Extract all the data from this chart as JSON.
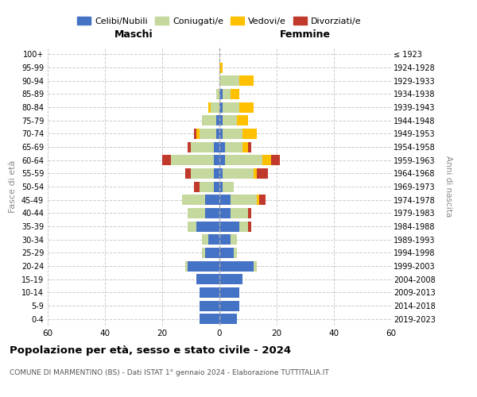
{
  "age_groups": [
    "0-4",
    "5-9",
    "10-14",
    "15-19",
    "20-24",
    "25-29",
    "30-34",
    "35-39",
    "40-44",
    "45-49",
    "50-54",
    "55-59",
    "60-64",
    "65-69",
    "70-74",
    "75-79",
    "80-84",
    "85-89",
    "90-94",
    "95-99",
    "100+"
  ],
  "birth_years": [
    "2019-2023",
    "2014-2018",
    "2009-2013",
    "2004-2008",
    "1999-2003",
    "1994-1998",
    "1989-1993",
    "1984-1988",
    "1979-1983",
    "1974-1978",
    "1969-1973",
    "1964-1968",
    "1959-1963",
    "1954-1958",
    "1949-1953",
    "1944-1948",
    "1939-1943",
    "1934-1938",
    "1929-1933",
    "1924-1928",
    "≤ 1923"
  ],
  "colors": {
    "celibi": "#4472c4",
    "coniugati": "#c5d89d",
    "vedovi": "#ffc000",
    "divorziati": "#c0392b"
  },
  "maschi": {
    "celibi": [
      7,
      7,
      7,
      8,
      11,
      5,
      4,
      8,
      5,
      5,
      2,
      2,
      2,
      2,
      1,
      1,
      0,
      0,
      0,
      0,
      0
    ],
    "coniugati": [
      0,
      0,
      0,
      0,
      1,
      1,
      2,
      3,
      6,
      8,
      5,
      8,
      15,
      8,
      6,
      5,
      3,
      1,
      0,
      0,
      0
    ],
    "vedovi": [
      0,
      0,
      0,
      0,
      0,
      0,
      0,
      0,
      0,
      0,
      0,
      0,
      0,
      0,
      1,
      0,
      1,
      0,
      0,
      0,
      0
    ],
    "divorziati": [
      0,
      0,
      0,
      0,
      0,
      0,
      0,
      0,
      0,
      0,
      2,
      2,
      3,
      1,
      1,
      0,
      0,
      0,
      0,
      0,
      0
    ]
  },
  "femmine": {
    "celibi": [
      6,
      7,
      7,
      8,
      12,
      5,
      4,
      7,
      4,
      4,
      1,
      1,
      2,
      2,
      1,
      1,
      1,
      1,
      0,
      0,
      0
    ],
    "coniugati": [
      0,
      0,
      0,
      0,
      1,
      1,
      2,
      3,
      6,
      9,
      4,
      11,
      13,
      6,
      7,
      5,
      6,
      3,
      7,
      0,
      0
    ],
    "vedovi": [
      0,
      0,
      0,
      0,
      0,
      0,
      0,
      0,
      0,
      1,
      0,
      1,
      3,
      2,
      5,
      4,
      5,
      3,
      5,
      1,
      0
    ],
    "divorziati": [
      0,
      0,
      0,
      0,
      0,
      0,
      0,
      1,
      1,
      2,
      0,
      4,
      3,
      1,
      0,
      0,
      0,
      0,
      0,
      0,
      0
    ]
  },
  "xlim": 60,
  "title": "Popolazione per età, sesso e stato civile - 2024",
  "subtitle": "COMUNE DI MARMENTINO (BS) - Dati ISTAT 1° gennaio 2024 - Elaborazione TUTTITALIA.IT",
  "ylabel_left": "Fasce di età",
  "ylabel_right": "Anni di nascita",
  "xlabel_left": "Maschi",
  "xlabel_right": "Femmine",
  "legend_labels": [
    "Celibi/Nubili",
    "Coniugati/e",
    "Vedovi/e",
    "Divorziati/e"
  ]
}
